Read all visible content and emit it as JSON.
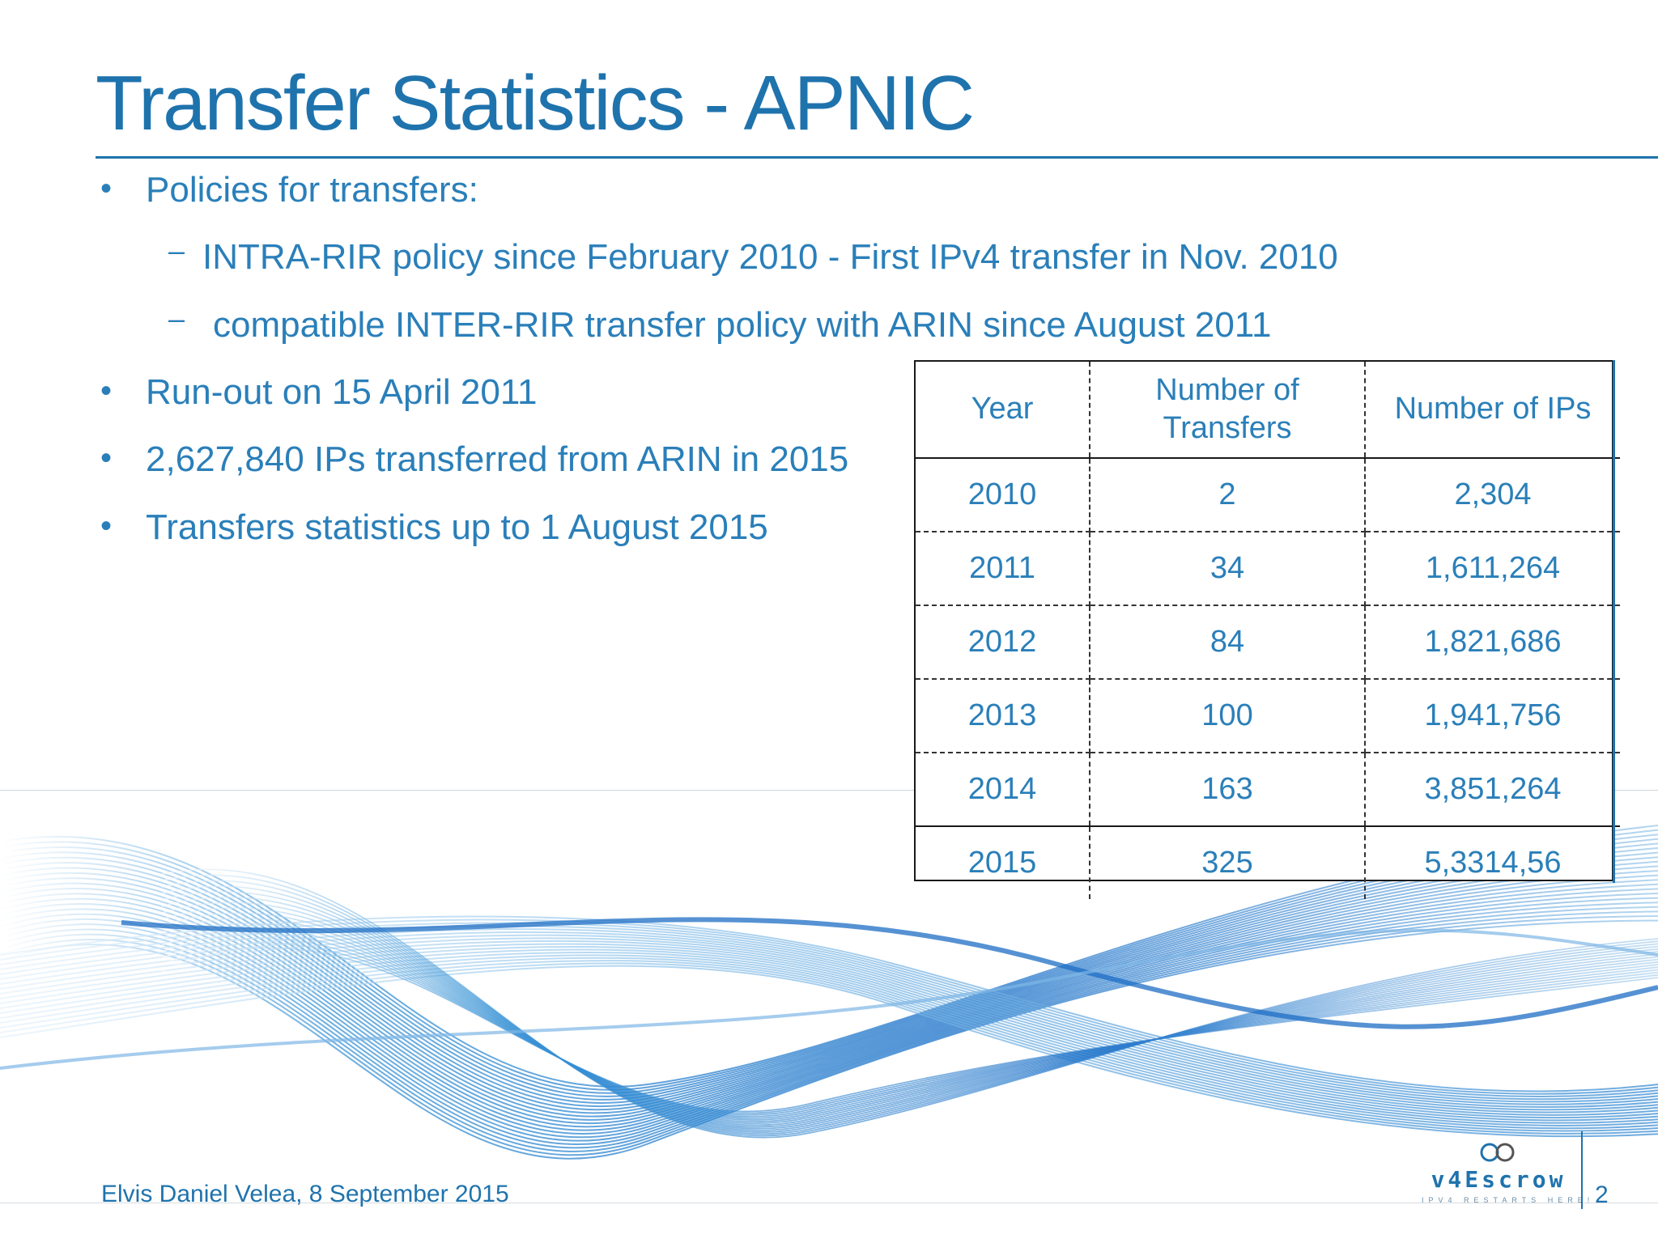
{
  "slide": {
    "title": "Transfer Statistics - APNIC",
    "bullets": [
      {
        "text": "Policies for transfers:"
      },
      {
        "text": "Run-out on 15 April 2011"
      },
      {
        "text": "2,627,840 IPs transferred from ARIN in 2015"
      },
      {
        "text": "Transfers statistics up to 1 August 2015"
      }
    ],
    "subbullets": [
      {
        "text": "INTRA-RIR policy since February 2010 - First IPv4 transfer in Nov. 2010"
      },
      {
        "text": "compatible INTER-RIR transfer policy with ARIN since August 2011"
      }
    ],
    "bullet_glyph": "•",
    "dash_glyph": "–"
  },
  "table": {
    "headers": {
      "year": "Year",
      "transfers_line1": "Number of",
      "transfers_line2": "Transfers",
      "ips": "Number of IPs"
    },
    "rows": [
      {
        "year": "2010",
        "transfers": "2",
        "ips": "2,304"
      },
      {
        "year": "2011",
        "transfers": "34",
        "ips": "1,611,264"
      },
      {
        "year": "2012",
        "transfers": "84",
        "ips": "1,821,686"
      },
      {
        "year": "2013",
        "transfers": "100",
        "ips": "1,941,756"
      },
      {
        "year": "2014",
        "transfers": "163",
        "ips": "3,851,264"
      },
      {
        "year": "2015",
        "transfers": "325",
        "ips": "5,3314,56"
      }
    ]
  },
  "footer": {
    "author_date": "Elvis Daniel Velea, 8 September 2015",
    "page_number": "2",
    "logo_text": "v4Escrow",
    "logo_tagline": "IPV4 RESTARTS HERE!"
  },
  "colors": {
    "accent": "#1f73ad",
    "text": "#2a7fb9",
    "rule": "#1a1a1a"
  }
}
